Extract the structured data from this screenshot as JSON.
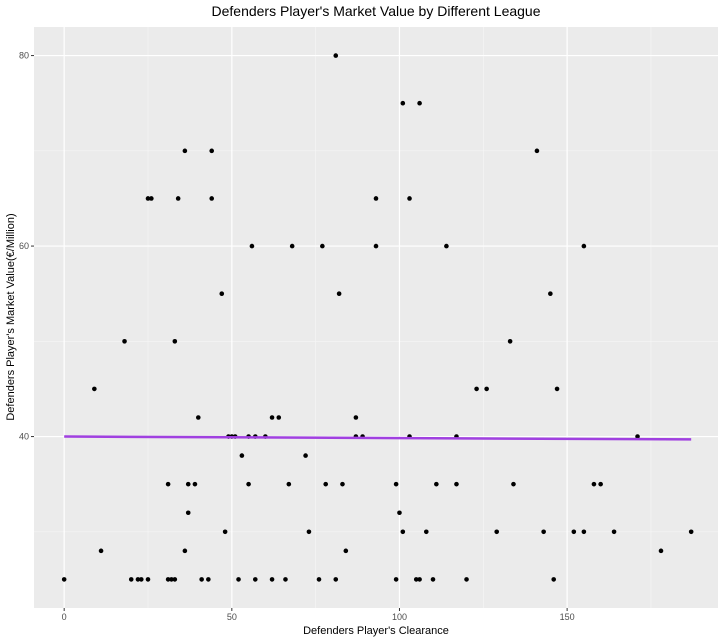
{
  "chart_data": {
    "type": "scatter",
    "title": "Defenders Player's Market Value by Different League",
    "xlabel": "Defenders Player's Clearance",
    "ylabel": "Defenders Player's Market Value(€/Million)",
    "xlim": [
      -9,
      195
    ],
    "ylim": [
      22,
      83
    ],
    "x_ticks": [
      0,
      50,
      100,
      150
    ],
    "y_ticks": [
      40,
      60,
      80
    ],
    "grid": true,
    "panel_color": "#ebebeb",
    "point_color": "#000000",
    "line_color": "#a040e0",
    "trend_line": {
      "x": [
        0,
        187
      ],
      "y": [
        40.0,
        39.7
      ]
    },
    "points": [
      [
        0,
        25
      ],
      [
        9,
        45
      ],
      [
        11,
        28
      ],
      [
        18,
        50
      ],
      [
        20,
        25
      ],
      [
        22,
        25
      ],
      [
        23,
        25
      ],
      [
        25,
        25
      ],
      [
        25,
        65
      ],
      [
        26,
        65
      ],
      [
        31,
        25
      ],
      [
        31,
        35
      ],
      [
        32,
        25
      ],
      [
        33,
        25
      ],
      [
        33,
        50
      ],
      [
        34,
        65
      ],
      [
        36,
        28
      ],
      [
        36,
        70
      ],
      [
        37,
        35
      ],
      [
        37,
        32
      ],
      [
        39,
        35
      ],
      [
        40,
        42
      ],
      [
        41,
        25
      ],
      [
        43,
        25
      ],
      [
        44,
        65
      ],
      [
        44,
        70
      ],
      [
        47,
        55
      ],
      [
        48,
        30
      ],
      [
        49,
        40
      ],
      [
        50,
        40
      ],
      [
        51,
        40
      ],
      [
        52,
        25
      ],
      [
        53,
        38
      ],
      [
        55,
        35
      ],
      [
        55,
        40
      ],
      [
        56,
        60
      ],
      [
        57,
        40
      ],
      [
        57,
        25
      ],
      [
        60,
        40
      ],
      [
        62,
        42
      ],
      [
        62,
        25
      ],
      [
        64,
        42
      ],
      [
        66,
        25
      ],
      [
        67,
        35
      ],
      [
        68,
        60
      ],
      [
        72,
        38
      ],
      [
        73,
        30
      ],
      [
        76,
        25
      ],
      [
        77,
        60
      ],
      [
        78,
        35
      ],
      [
        81,
        80
      ],
      [
        81,
        25
      ],
      [
        82,
        55
      ],
      [
        83,
        35
      ],
      [
        84,
        28
      ],
      [
        87,
        42
      ],
      [
        87,
        40
      ],
      [
        89,
        40
      ],
      [
        93,
        65
      ],
      [
        93,
        60
      ],
      [
        99,
        35
      ],
      [
        99,
        25
      ],
      [
        100,
        32
      ],
      [
        101,
        30
      ],
      [
        101,
        75
      ],
      [
        103,
        65
      ],
      [
        103,
        40
      ],
      [
        105,
        25
      ],
      [
        106,
        25
      ],
      [
        106,
        75
      ],
      [
        108,
        30
      ],
      [
        110,
        25
      ],
      [
        111,
        35
      ],
      [
        114,
        60
      ],
      [
        117,
        40
      ],
      [
        117,
        35
      ],
      [
        120,
        25
      ],
      [
        123,
        45
      ],
      [
        126,
        45
      ],
      [
        129,
        30
      ],
      [
        133,
        50
      ],
      [
        134,
        35
      ],
      [
        141,
        70
      ],
      [
        143,
        30
      ],
      [
        145,
        55
      ],
      [
        146,
        25
      ],
      [
        147,
        45
      ],
      [
        152,
        30
      ],
      [
        155,
        30
      ],
      [
        155,
        60
      ],
      [
        158,
        35
      ],
      [
        160,
        35
      ],
      [
        164,
        30
      ],
      [
        171,
        40
      ],
      [
        178,
        28
      ],
      [
        187,
        30
      ]
    ]
  }
}
